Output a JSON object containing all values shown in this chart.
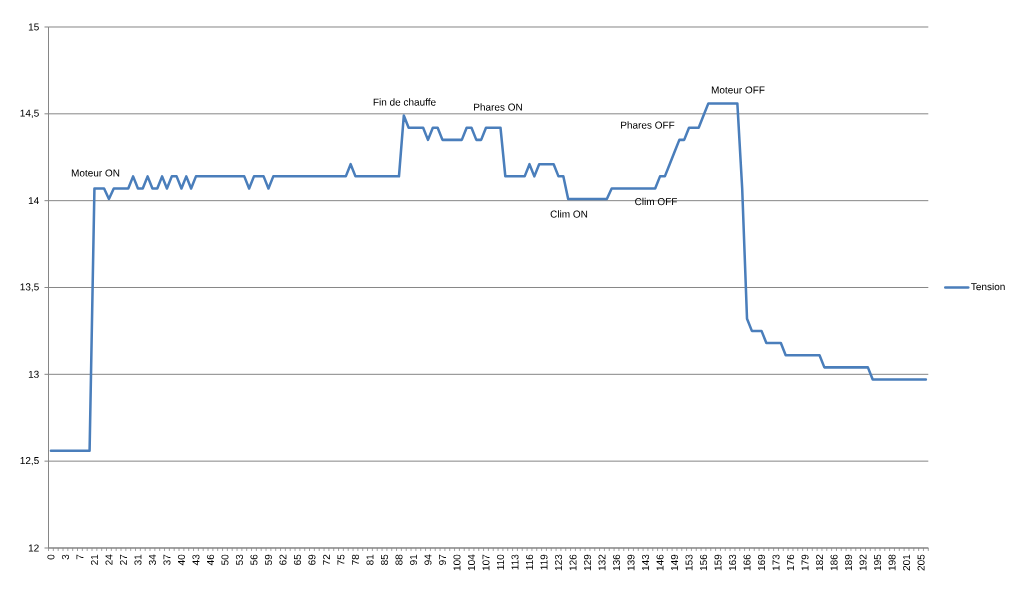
{
  "chart_data": {
    "type": "line",
    "categories": [
      "0",
      null,
      null,
      "3",
      null,
      null,
      "7",
      null,
      null,
      "21",
      null,
      null,
      "24",
      null,
      null,
      "27",
      null,
      null,
      "31",
      null,
      null,
      "34",
      null,
      null,
      "37",
      null,
      null,
      "40",
      null,
      null,
      "43",
      null,
      null,
      "46",
      null,
      null,
      "50",
      null,
      null,
      "53",
      null,
      null,
      "56",
      null,
      null,
      "59",
      null,
      null,
      "62",
      null,
      null,
      "65",
      null,
      null,
      "69",
      null,
      null,
      "72",
      null,
      null,
      "75",
      null,
      null,
      "78",
      null,
      null,
      "81",
      null,
      null,
      "85",
      null,
      null,
      "88",
      null,
      null,
      "91",
      null,
      null,
      "94",
      null,
      null,
      "97",
      null,
      null,
      "100",
      null,
      null,
      "104",
      null,
      null,
      "107",
      null,
      null,
      "110",
      null,
      null,
      "113",
      null,
      null,
      "116",
      null,
      null,
      "119",
      null,
      null,
      "123",
      null,
      null,
      "126",
      null,
      null,
      "129",
      null,
      null,
      "132",
      null,
      null,
      "136",
      null,
      null,
      "139",
      null,
      null,
      "143",
      null,
      null,
      "146",
      null,
      null,
      "149",
      null,
      null,
      "153",
      null,
      null,
      "156",
      null,
      null,
      "159",
      null,
      null,
      "163",
      null,
      null,
      "166",
      null,
      null,
      "169",
      null,
      null,
      "173",
      null,
      null,
      "176",
      null,
      null,
      "179",
      null,
      null,
      "182",
      null,
      null,
      "186",
      null,
      null,
      "189",
      null,
      null,
      "192",
      null,
      null,
      "195",
      null,
      null,
      "198",
      null,
      null,
      "201",
      null,
      null,
      "205",
      null
    ],
    "series": [
      {
        "name": "Tension",
        "color": "#4a7ebb",
        "values": [
          12.56,
          12.56,
          12.56,
          12.56,
          12.56,
          12.56,
          12.56,
          12.56,
          12.56,
          14.07,
          14.07,
          14.07,
          14.01,
          14.07,
          14.07,
          14.07,
          14.07,
          14.14,
          14.07,
          14.07,
          14.14,
          14.07,
          14.07,
          14.14,
          14.07,
          14.14,
          14.14,
          14.07,
          14.14,
          14.07,
          14.14,
          14.14,
          14.14,
          14.14,
          14.14,
          14.14,
          14.14,
          14.14,
          14.14,
          14.14,
          14.14,
          14.07,
          14.14,
          14.14,
          14.14,
          14.07,
          14.14,
          14.14,
          14.14,
          14.14,
          14.14,
          14.14,
          14.14,
          14.14,
          14.14,
          14.14,
          14.14,
          14.14,
          14.14,
          14.14,
          14.14,
          14.14,
          14.21,
          14.14,
          14.14,
          14.14,
          14.14,
          14.14,
          14.14,
          14.14,
          14.14,
          14.14,
          14.14,
          14.49,
          14.42,
          14.42,
          14.42,
          14.42,
          14.35,
          14.42,
          14.42,
          14.35,
          14.35,
          14.35,
          14.35,
          14.35,
          14.42,
          14.42,
          14.35,
          14.35,
          14.42,
          14.42,
          14.42,
          14.42,
          14.14,
          14.14,
          14.14,
          14.14,
          14.14,
          14.21,
          14.14,
          14.21,
          14.21,
          14.21,
          14.21,
          14.14,
          14.14,
          14.01,
          14.01,
          14.01,
          14.01,
          14.01,
          14.01,
          14.01,
          14.01,
          14.01,
          14.07,
          14.07,
          14.07,
          14.07,
          14.07,
          14.07,
          14.07,
          14.07,
          14.07,
          14.07,
          14.14,
          14.14,
          14.21,
          14.28,
          14.35,
          14.35,
          14.42,
          14.42,
          14.42,
          14.49,
          14.56,
          14.56,
          14.56,
          14.56,
          14.56,
          14.56,
          14.56,
          14.07,
          13.32,
          13.25,
          13.25,
          13.25,
          13.18,
          13.18,
          13.18,
          13.18,
          13.11,
          13.11,
          13.11,
          13.11,
          13.11,
          13.11,
          13.11,
          13.11,
          13.04,
          13.04,
          13.04,
          13.04,
          13.04,
          13.04,
          13.04,
          13.04,
          13.04,
          13.04,
          12.97,
          12.97,
          12.97,
          12.97,
          12.97,
          12.97,
          12.97,
          12.97,
          12.97,
          12.97,
          12.97,
          12.97
        ]
      }
    ],
    "ylim": [
      12,
      15
    ],
    "yticks": [
      12,
      {
        "value": 12.5,
        "label": "12,5"
      },
      13,
      {
        "value": 13.5,
        "label": "13,5"
      },
      14,
      {
        "value": 14.5,
        "label": "14,5"
      },
      15
    ],
    "grid": "y",
    "legend": "right",
    "marker": "none",
    "line_style": "solid",
    "annotations": [
      "Moteur ON",
      "Fin de chauffe",
      "Phares ON",
      "Clim ON",
      "Phares OFF",
      "Clim OFF",
      "Moteur OFF"
    ]
  }
}
